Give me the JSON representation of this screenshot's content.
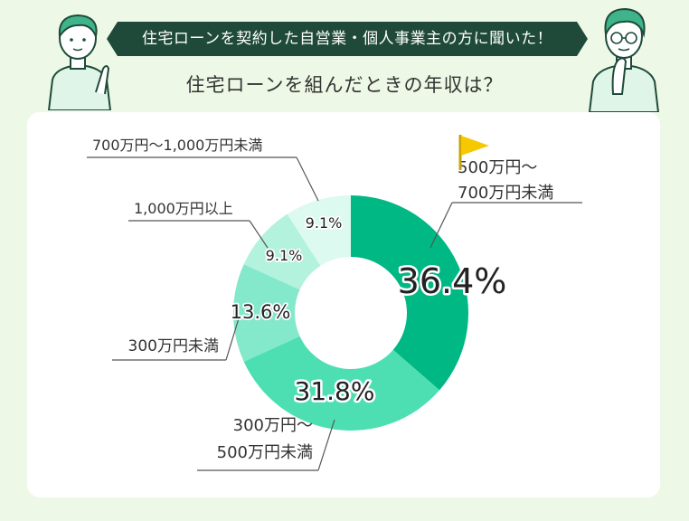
{
  "header": {
    "banner": "住宅ローンを契約した自営業・個人事業主の方に聞いた！",
    "subtitle": "住宅ローンを組んだときの年収は？"
  },
  "colors": {
    "page_bg": "#eef8e6",
    "banner": "#1f4a3a",
    "slice_1": "#00b883",
    "slice_2": "#4ddfb2",
    "slice_3": "#84e8cb",
    "slice_4": "#b3f2dd",
    "slice_5": "#dcfaef",
    "flag": "#f5c800"
  },
  "icons": [
    "flag-icon"
  ],
  "chart_data": {
    "type": "pie",
    "donut": true,
    "start_angle_deg": 0,
    "direction": "clockwise",
    "slices": [
      {
        "label_lines": [
          "500万円〜",
          "700万円未満"
        ],
        "value": 36.4,
        "value_label": "36.4%",
        "color": "#00b883"
      },
      {
        "label_lines": [
          "300万円〜",
          "500万円未満"
        ],
        "value": 31.8,
        "value_label": "31.8%",
        "color": "#4ddfb2"
      },
      {
        "label_lines": [
          "300万円未満"
        ],
        "value": 13.6,
        "value_label": "13.6%",
        "color": "#84e8cb"
      },
      {
        "label_lines": [
          "1,000万円以上"
        ],
        "value": 9.1,
        "value_label": "9.1%",
        "color": "#b3f2dd"
      },
      {
        "label_lines": [
          "700万円〜1,000万円未満"
        ],
        "value": 9.1,
        "value_label": "9.1%",
        "color": "#dcfaef"
      }
    ]
  }
}
